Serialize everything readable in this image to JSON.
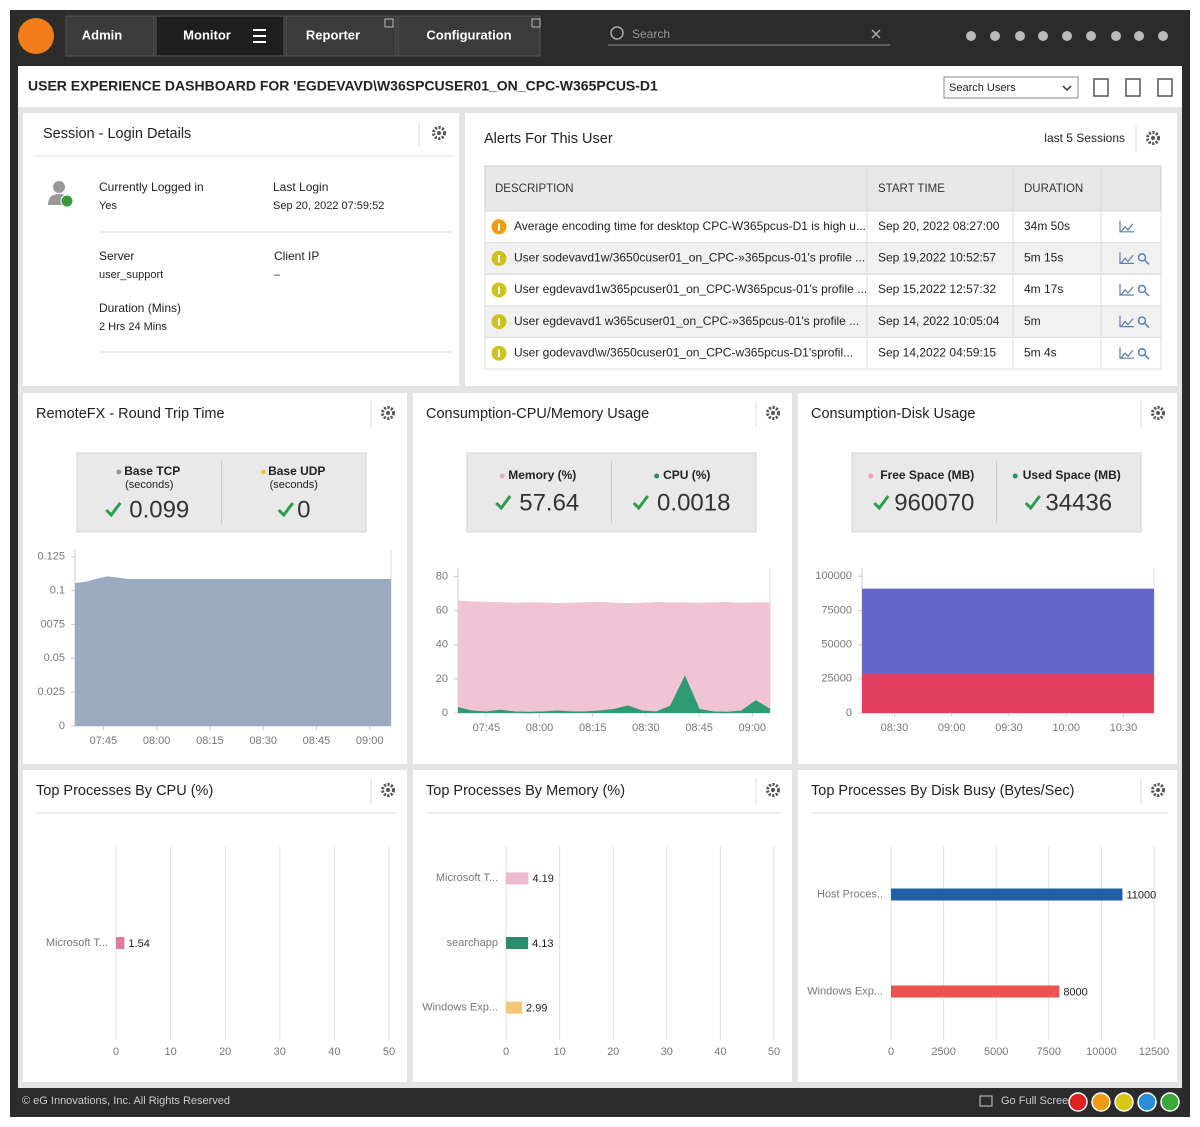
{
  "nav": {
    "items": [
      "Admin",
      "Monitor",
      "Reporter",
      "Configuration"
    ],
    "search": "Search"
  },
  "header": {
    "title": "USER EXPERIENCE DASHBOARD FOR 'EGDEVAVD\\W36SPCUSER01_ON_CPC-W365PCUS-D1",
    "search_users": "Search Users"
  },
  "session": {
    "title": "Session - Login Details",
    "fields": [
      {
        "label": "Currently Logged in",
        "value": "Yes"
      },
      {
        "label": "Last Login",
        "value": "Sep 20, 2022 07:59:52"
      },
      {
        "label": "Server",
        "value": "user_support"
      },
      {
        "label": "Client IP",
        "value": "–"
      },
      {
        "label": "Duration (Mins)",
        "value": "2 Hrs 24 Mins"
      }
    ]
  },
  "alerts": {
    "title": "Alerts For This User",
    "filter": "last 5 Sessions",
    "columns": [
      "DESCRIPTION",
      "START TIME",
      "DURATION"
    ],
    "icon_colors": [
      "#f39c12",
      "#cfc21e",
      "#cfc21e",
      "#cfc21e",
      "#cfc21e"
    ],
    "rows": [
      [
        "Average encoding time for desktop CPC-W365pcus-D1 is high u...",
        "Sep 20, 2022 08:27:00",
        "34m 50s"
      ],
      [
        "User sodevavd1w/3650cuser01_on_CPC-»365pcus-01's profile ...",
        "Sep 19,2022 10:52:57",
        "5m 15s"
      ],
      [
        "User egdevavd1w365pcuser01_on_CPC-W365pcus-01's profile ...",
        "Sep 15,2022 12:57:32",
        "4m 17s"
      ],
      [
        "User egdevavd1 w365cuser01_on_CPC-»365pcus-01's profile ...",
        "Sep 14, 2022 10:05:04",
        "5m"
      ],
      [
        "User godevavd\\w/3650cuser01_on_CPC-w365pcus-D1'sprofil...",
        "Sep 14,2022 04:59:15",
        "5m 4s"
      ]
    ]
  },
  "charts": [
    {
      "title": "RemoteFX - Round Trip Time",
      "type": "area",
      "stacked": false,
      "stats": [
        {
          "name": "Base TCP",
          "unit": "(seconds)",
          "value": 0.099,
          "color": "#8a9bb0"
        },
        {
          "name": "Base UDP",
          "unit": "(seconds)",
          "value": 0,
          "color": "#f5c542"
        }
      ],
      "x": [
        457,
        460,
        463,
        466,
        469,
        472,
        475,
        480,
        490,
        500,
        510,
        520,
        530,
        540,
        546
      ],
      "xlim": [
        457,
        546
      ],
      "xticks": [
        {
          "value": 465,
          "label": "07:45"
        },
        {
          "value": 480,
          "label": "08:00"
        },
        {
          "value": 495,
          "label": "08:15"
        },
        {
          "value": 510,
          "label": "08:30"
        },
        {
          "value": 525,
          "label": "08:45"
        },
        {
          "value": 540,
          "label": "09:00"
        }
      ],
      "ylim": [
        0,
        0.13
      ],
      "yticks": [
        0,
        0.025,
        0.05,
        {
          "value": 0.075,
          "label": "0075"
        },
        0.1,
        0.125
      ],
      "series": [
        {
          "color": "#9aabbf",
          "values": [
            0.105,
            0.106,
            0.108,
            0.11,
            0.109,
            0.108,
            0.108,
            0.108,
            0.108,
            0.108,
            0.108,
            0.108,
            0.108,
            0.108,
            0.108
          ]
        }
      ]
    },
    {
      "title": "Consumption-CPU/Memory Usage",
      "type": "area",
      "stacked": false,
      "stats": [
        {
          "name": "Memory (%)",
          "value": 57.64,
          "color": "#f0a8c0"
        },
        {
          "name": "CPU (%)",
          "value": 0.0018,
          "color": "#2e8b6e"
        }
      ],
      "x": [
        457,
        461,
        465,
        469,
        473,
        477,
        481,
        485,
        489,
        493,
        497,
        501,
        505,
        509,
        513,
        517,
        521,
        525,
        529,
        533,
        537,
        541,
        545
      ],
      "xlim": [
        457,
        545
      ],
      "xticks": [
        {
          "value": 465,
          "label": "07:45"
        },
        {
          "value": 480,
          "label": "08:00"
        },
        {
          "value": 495,
          "label": "08:15"
        },
        {
          "value": 510,
          "label": "08:30"
        },
        {
          "value": 525,
          "label": "08:45"
        },
        {
          "value": 540,
          "label": "09:00"
        }
      ],
      "ylim": [
        0,
        85
      ],
      "yticks": [
        0,
        20,
        40,
        60,
        80
      ],
      "series": [
        {
          "color": "#f0c4d4",
          "values": [
            65.5,
            65,
            64.8,
            64.5,
            64.2,
            64.5,
            64.3,
            64,
            64.2,
            64.5,
            64.8,
            64.2,
            64,
            64.2,
            64.6,
            64.3,
            64.5,
            64.2,
            64.4,
            64.6,
            64.2,
            64.5,
            64.4
          ]
        },
        {
          "color": "#2e9b72",
          "values": [
            3,
            1,
            0.5,
            1.5,
            0.5,
            0.3,
            0.5,
            1,
            0.5,
            0.5,
            1,
            2,
            4,
            1,
            0.5,
            4,
            21,
            2,
            0.5,
            0.3,
            1,
            7,
            2
          ]
        }
      ]
    },
    {
      "title": "Consumption-Disk Usage",
      "type": "area",
      "stacked": true,
      "stats": [
        {
          "name": "Free Space (MB)",
          "value": 960070,
          "color": "#f4a0b0"
        },
        {
          "name": "Used Space (MB)",
          "value": 34436,
          "color": "#2e8b6e"
        }
      ],
      "x": [
        493,
        510,
        530,
        560,
        590,
        620,
        646
      ],
      "xlim": [
        493,
        646
      ],
      "xticks": [
        {
          "value": 510,
          "label": "08:30"
        },
        {
          "value": 540,
          "label": "09:00"
        },
        {
          "value": 570,
          "label": "09:30"
        },
        {
          "value": 600,
          "label": "10:00"
        },
        {
          "value": 630,
          "label": "10:30"
        }
      ],
      "ylim": [
        0,
        106000
      ],
      "yticks": [
        0,
        25000,
        50000,
        75000,
        100000
      ],
      "series": [
        {
          "color": "#e0405e",
          "values": [
            28700,
            28700,
            28700,
            28700,
            28700,
            28700,
            28700
          ]
        },
        {
          "color": "#6468c8",
          "values": [
            61700,
            61700,
            61700,
            61700,
            61700,
            61700,
            61700
          ]
        }
      ]
    },
    {
      "title": "Top Processes By CPU (%)",
      "type": "hbar",
      "grid": true,
      "categories": [
        "Microsoft T..."
      ],
      "values": [
        1.54
      ],
      "colors": [
        "#e07a9a"
      ],
      "xlim": [
        0,
        50
      ],
      "xticks": [
        0,
        10,
        20,
        30,
        40,
        50
      ]
    },
    {
      "title": "Top Processes By Memory (%)",
      "type": "hbar",
      "grid": true,
      "categories": [
        "Microsoft T...",
        "searchapp",
        "Windows Exp..."
      ],
      "values": [
        4.19,
        4.13,
        2.99
      ],
      "colors": [
        "#f0b8cc",
        "#2e8b6e",
        "#f5c67a"
      ],
      "xlim": [
        0,
        50
      ],
      "xticks": [
        0,
        10,
        20,
        30,
        40,
        50
      ]
    },
    {
      "title": "Top Processes By Disk Busy (Bytes/Sec)",
      "type": "hbar",
      "grid": true,
      "categories": [
        "Host Proces..",
        "Windows Exp..."
      ],
      "values": [
        11000,
        8000
      ],
      "colors": [
        "#1f5fa8",
        "#f05050"
      ],
      "xlim": [
        0,
        12500
      ],
      "xticks": [
        0,
        2500,
        5000,
        7500,
        10000,
        12500
      ]
    }
  ],
  "footer": {
    "copyright": "© eG Innovations, Inc. All Rights Reserved",
    "fullscreen": "Go Full Screen"
  }
}
